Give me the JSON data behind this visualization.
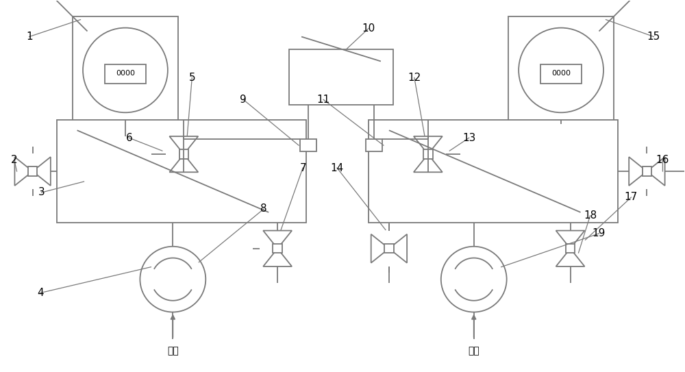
{
  "bg_color": "#ffffff",
  "line_color": "#7a7a7a",
  "lw": 1.3,
  "label_color": "#000000",
  "label_fs": 11,
  "atm_text": "大气",
  "gauge_text": "0000"
}
